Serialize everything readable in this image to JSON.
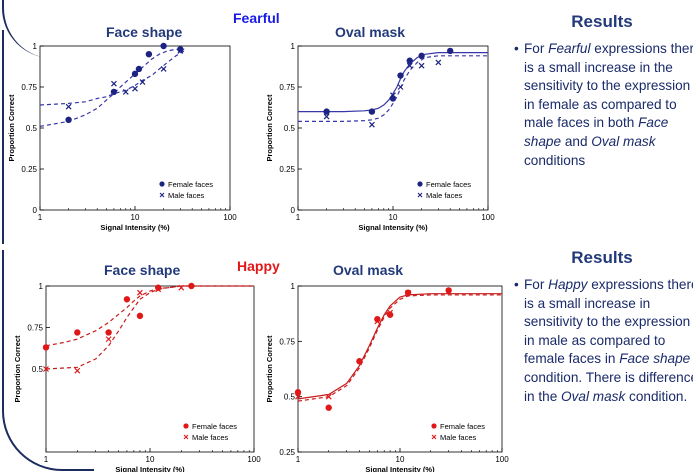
{
  "colors": {
    "fearful": "#1a1ae6",
    "happy": "#e01818",
    "dark_blue": "#1c2380",
    "heading": "#233a7a",
    "text": "#1a2a6a",
    "curve_blue": "#3838a8",
    "curve_red": "#c81c1c"
  },
  "fearful": {
    "label": "Fearful",
    "face_shape_title": "Face shape",
    "oval_mask_title": "Oval mask",
    "results_heading": "Results",
    "bullet": [
      {
        "t": "For ",
        "i": false
      },
      {
        "t": "Fearful",
        "i": true
      },
      {
        "t": " expressions there is a small increase in the sensitivity to the expression in female as compared to male faces in both ",
        "i": false
      },
      {
        "t": "Face shape",
        "i": true
      },
      {
        "t": " and ",
        "i": false
      },
      {
        "t": "Oval mask",
        "i": true
      },
      {
        "t": " conditions",
        "i": false
      }
    ]
  },
  "happy": {
    "label": "Happy",
    "face_shape_title": "Face shape",
    "oval_mask_title": "Oval mask",
    "results_heading": "Results",
    "bullet": [
      {
        "t": "For ",
        "i": false
      },
      {
        "t": "Happy",
        "i": true
      },
      {
        "t": " expressions there is a small increase in sensitivity to the expression in male as compared to female faces in ",
        "i": false
      },
      {
        "t": "Face shape",
        "i": true
      },
      {
        "t": " condition. There is difference in the ",
        "i": false
      },
      {
        "t": "Oval mask",
        "i": true
      },
      {
        "t": " condition.",
        "i": false
      }
    ]
  },
  "chart_data": [
    {
      "id": "fearful-face-shape",
      "type": "scatter",
      "scheme": "blue",
      "xscale": "log",
      "xlim": [
        1,
        100
      ],
      "ylim": [
        0,
        1
      ],
      "xticks": [
        "1",
        "10",
        "100"
      ],
      "yticks": [
        "0",
        "0.25",
        "0.5",
        "0.75",
        "1"
      ],
      "xlabel": "Signal Intensity (%)",
      "ylabel": "Proportion Correct",
      "legend": [
        "Female faces",
        "Male faces"
      ],
      "legend_position": "bottom-right",
      "series": [
        {
          "name": "Female faces",
          "marker": "dot",
          "points": [
            [
              2,
              0.55
            ],
            [
              6,
              0.72
            ],
            [
              10,
              0.83
            ],
            [
              11,
              0.86
            ],
            [
              14,
              0.95
            ],
            [
              20,
              1.0
            ],
            [
              30,
              0.98
            ]
          ],
          "fit": [
            [
              1,
              0.51
            ],
            [
              2,
              0.54
            ],
            [
              3,
              0.58
            ],
            [
              4,
              0.62
            ],
            [
              5,
              0.67
            ],
            [
              6,
              0.71
            ],
            [
              7,
              0.75
            ],
            [
              8,
              0.78
            ],
            [
              10,
              0.83
            ],
            [
              12,
              0.87
            ],
            [
              15,
              0.92
            ],
            [
              18,
              0.95
            ],
            [
              22,
              0.97
            ],
            [
              27,
              0.98
            ],
            [
              33,
              0.98
            ]
          ]
        },
        {
          "name": "Male faces",
          "marker": "x",
          "points": [
            [
              2,
              0.63
            ],
            [
              6,
              0.77
            ],
            [
              8,
              0.72
            ],
            [
              10,
              0.74
            ],
            [
              12,
              0.78
            ],
            [
              20,
              0.86
            ],
            [
              30,
              0.97
            ]
          ],
          "fit": [
            [
              1,
              0.64
            ],
            [
              2,
              0.65
            ],
            [
              3,
              0.66
            ],
            [
              4,
              0.68
            ],
            [
              5,
              0.69
            ],
            [
              6,
              0.71
            ],
            [
              7,
              0.72
            ],
            [
              8,
              0.73
            ],
            [
              10,
              0.76
            ],
            [
              12,
              0.79
            ],
            [
              15,
              0.82
            ],
            [
              18,
              0.86
            ],
            [
              22,
              0.9
            ],
            [
              27,
              0.94
            ],
            [
              33,
              0.97
            ]
          ]
        }
      ]
    },
    {
      "id": "fearful-oval-mask",
      "type": "scatter",
      "scheme": "blue",
      "xscale": "log",
      "xlim": [
        1,
        100
      ],
      "ylim": [
        0,
        1
      ],
      "xticks": [
        "1",
        "10",
        "100"
      ],
      "yticks": [
        "0",
        "0.25",
        "0.5",
        "0.75",
        "1"
      ],
      "xlabel": "Signal Intensity (%)",
      "ylabel": "Proportion Correct",
      "legend": [
        "Female faces",
        "Male faces"
      ],
      "legend_position": "bottom-right",
      "series": [
        {
          "name": "Female faces",
          "marker": "dot",
          "points": [
            [
              2,
              0.6
            ],
            [
              6,
              0.6
            ],
            [
              10,
              0.68
            ],
            [
              12,
              0.82
            ],
            [
              15,
              0.91
            ],
            [
              20,
              0.94
            ],
            [
              40,
              0.97
            ]
          ],
          "fit": [
            [
              1,
              0.6
            ],
            [
              3,
              0.6
            ],
            [
              5,
              0.605
            ],
            [
              6,
              0.61
            ],
            [
              7,
              0.62
            ],
            [
              8,
              0.64
            ],
            [
              9,
              0.67
            ],
            [
              10,
              0.71
            ],
            [
              11,
              0.75
            ],
            [
              12,
              0.8
            ],
            [
              13,
              0.84
            ],
            [
              15,
              0.89
            ],
            [
              18,
              0.93
            ],
            [
              22,
              0.95
            ],
            [
              30,
              0.96
            ],
            [
              100,
              0.96
            ]
          ]
        },
        {
          "name": "Male faces",
          "marker": "x",
          "points": [
            [
              2,
              0.57
            ],
            [
              6,
              0.52
            ],
            [
              10,
              0.7
            ],
            [
              12,
              0.75
            ],
            [
              15,
              0.88
            ],
            [
              20,
              0.88
            ],
            [
              30,
              0.9
            ]
          ],
          "fit": [
            [
              1,
              0.54
            ],
            [
              3,
              0.54
            ],
            [
              5,
              0.545
            ],
            [
              6,
              0.55
            ],
            [
              7,
              0.56
            ],
            [
              8,
              0.58
            ],
            [
              9,
              0.61
            ],
            [
              10,
              0.65
            ],
            [
              11,
              0.69
            ],
            [
              12,
              0.74
            ],
            [
              13,
              0.79
            ],
            [
              15,
              0.85
            ],
            [
              18,
              0.9
            ],
            [
              22,
              0.93
            ],
            [
              30,
              0.94
            ],
            [
              100,
              0.94
            ]
          ]
        }
      ]
    },
    {
      "id": "happy-face-shape",
      "type": "scatter",
      "scheme": "red",
      "xscale": "log",
      "xlim": [
        1,
        100
      ],
      "ylim": [
        0,
        1
      ],
      "xticks": [
        "1",
        "10",
        "100"
      ],
      "yticks": [
        "0.5",
        "0.75",
        "1"
      ],
      "xlabel": "Signal Intensity (%)",
      "ylabel": "Proportion Correct",
      "legend": [
        "Female faces",
        "Male faces"
      ],
      "legend_position": "bottom-right",
      "series": [
        {
          "name": "Female faces",
          "marker": "dot",
          "points": [
            [
              1,
              0.63
            ],
            [
              2,
              0.72
            ],
            [
              4,
              0.72
            ],
            [
              6,
              0.92
            ],
            [
              8,
              0.82
            ],
            [
              12,
              0.99
            ],
            [
              25,
              1.0
            ]
          ],
          "fit": [
            [
              1,
              0.64
            ],
            [
              1.5,
              0.66
            ],
            [
              2,
              0.68
            ],
            [
              3,
              0.73
            ],
            [
              4,
              0.78
            ],
            [
              5,
              0.83
            ],
            [
              6,
              0.87
            ],
            [
              7,
              0.91
            ],
            [
              8,
              0.94
            ],
            [
              10,
              0.97
            ],
            [
              12,
              0.985
            ],
            [
              15,
              0.99
            ],
            [
              20,
              1.0
            ],
            [
              30,
              1.0
            ],
            [
              100,
              1.0
            ]
          ]
        },
        {
          "name": "Male faces",
          "marker": "x",
          "points": [
            [
              1,
              0.5
            ],
            [
              2,
              0.49
            ],
            [
              4,
              0.68
            ],
            [
              8,
              0.96
            ],
            [
              12,
              0.98
            ],
            [
              20,
              0.99
            ]
          ],
          "fit": [
            [
              1,
              0.5
            ],
            [
              2,
              0.51
            ],
            [
              3,
              0.56
            ],
            [
              4,
              0.64
            ],
            [
              5,
              0.73
            ],
            [
              6,
              0.81
            ],
            [
              7,
              0.87
            ],
            [
              8,
              0.92
            ],
            [
              10,
              0.96
            ],
            [
              12,
              0.98
            ],
            [
              15,
              0.99
            ],
            [
              20,
              1.0
            ],
            [
              100,
              1.0
            ]
          ]
        }
      ]
    },
    {
      "id": "happy-oval-mask",
      "type": "scatter",
      "scheme": "red",
      "xscale": "log",
      "xlim": [
        1,
        100
      ],
      "ylim": [
        0.25,
        1
      ],
      "xticks": [
        "1",
        "10",
        "100"
      ],
      "yticks": [
        "0.25",
        "0.5",
        "0.75",
        "1"
      ],
      "xlabel": "Signal Intensity (%)",
      "ylabel": "Proportion Correct",
      "legend": [
        "Female faces",
        "Male faces"
      ],
      "legend_position": "bottom-right",
      "series": [
        {
          "name": "Female faces",
          "marker": "dot",
          "points": [
            [
              1,
              0.52
            ],
            [
              2,
              0.45
            ],
            [
              4,
              0.66
            ],
            [
              6,
              0.85
            ],
            [
              8,
              0.87
            ],
            [
              12,
              0.97
            ],
            [
              30,
              0.98
            ]
          ],
          "fit": [
            [
              1,
              0.49
            ],
            [
              2,
              0.51
            ],
            [
              3,
              0.56
            ],
            [
              4,
              0.64
            ],
            [
              5,
              0.73
            ],
            [
              6,
              0.81
            ],
            [
              7,
              0.87
            ],
            [
              8,
              0.91
            ],
            [
              10,
              0.95
            ],
            [
              12,
              0.96
            ],
            [
              20,
              0.965
            ],
            [
              100,
              0.965
            ]
          ]
        },
        {
          "name": "Male faces",
          "marker": "x",
          "points": [
            [
              1,
              0.5
            ],
            [
              2,
              0.5
            ],
            [
              6,
              0.84
            ],
            [
              8,
              0.88
            ],
            [
              12,
              0.97
            ]
          ],
          "fit": [
            [
              1,
              0.48
            ],
            [
              2,
              0.5
            ],
            [
              3,
              0.55
            ],
            [
              4,
              0.63
            ],
            [
              5,
              0.72
            ],
            [
              6,
              0.8
            ],
            [
              7,
              0.86
            ],
            [
              8,
              0.9
            ],
            [
              10,
              0.94
            ],
            [
              12,
              0.955
            ],
            [
              20,
              0.96
            ],
            [
              100,
              0.96
            ]
          ]
        }
      ]
    }
  ]
}
